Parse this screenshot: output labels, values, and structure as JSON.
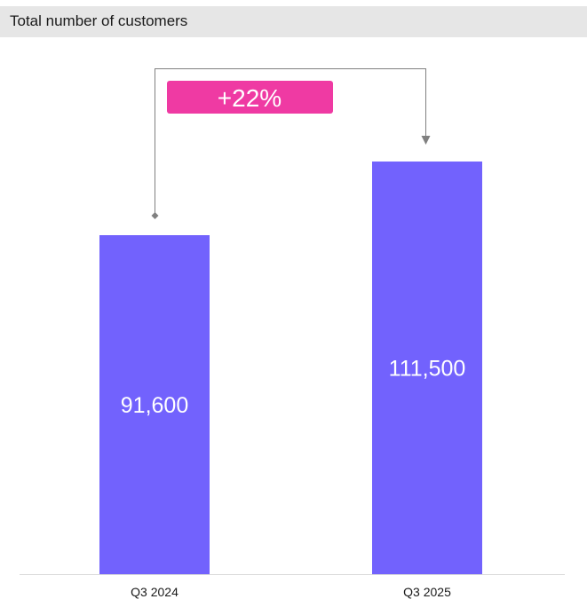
{
  "header": {
    "title": "Total number of customers"
  },
  "chart_data": {
    "type": "bar",
    "title": "Total number of customers",
    "categories": [
      "Q3 2024",
      "Q3 2025"
    ],
    "values": [
      91600,
      111500
    ],
    "value_labels": [
      "91,600",
      "111,500"
    ],
    "xlabel": "",
    "ylabel": "",
    "ylim": [
      0,
      130000
    ],
    "grid": false,
    "legend": "none",
    "annotation": {
      "text": "+22%",
      "from": "Q3 2024",
      "to": "Q3 2025"
    }
  },
  "colors": {
    "bar": "#7262fd",
    "badge": "#ef3aa3",
    "connector": "#808080",
    "title_bg": "#e6e6e6",
    "baseline": "#d9d9d9"
  }
}
